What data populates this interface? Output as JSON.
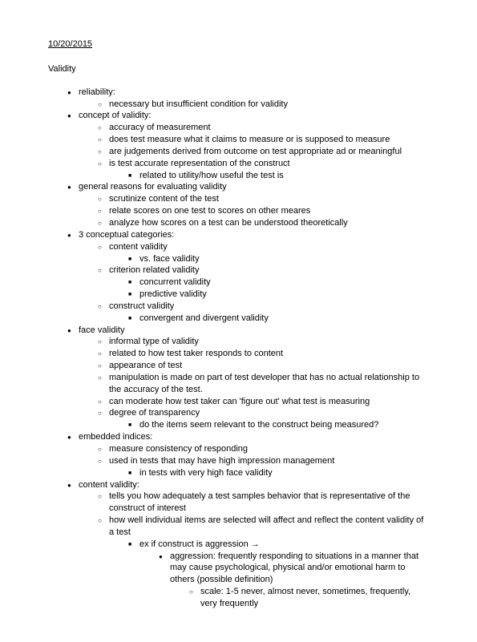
{
  "date": "10/20/2015",
  "title": "Validity",
  "b1": "reliability:",
  "b1_1": "necessary but insufficient condition for validity",
  "b2": "concept of validity:",
  "b2_1": "accuracy of measurement",
  "b2_2": "does test measure what it claims to measure or is supposed to measure",
  "b2_3": "are judgements derived from outcome on test appropriate ad or meaningful",
  "b2_4": "is test accurate representation of the construct",
  "b2_4_1": "related to utility/how useful the test is",
  "b3": "general reasons for evaluating validity",
  "b3_1": "scrutinize content of the test",
  "b3_2": "relate scores on one test to scores on other meares",
  "b3_3": "analyze how scores on a test can be understood theoretically",
  "b4": "3 conceptual categories:",
  "b4_1": "content validity",
  "b4_1_1": "vs. face validity",
  "b4_2": "criterion related validity",
  "b4_2_1": "concurrent validity",
  "b4_2_2": "predictive validity",
  "b4_3": "construct validity",
  "b4_3_1": "convergent and divergent validity",
  "b5": "face validity",
  "b5_1": "informal type of validity",
  "b5_2": "related to how test taker responds to content",
  "b5_3": "appearance of test",
  "b5_4": "manipulation is made on part of test developer that has no actual relationship to the accuracy of the test.",
  "b5_5": "can moderate how test taker can 'figure out' what test is measuring",
  "b5_6": "degree of transparency",
  "b5_6_1": "do the items seem relevant to the construct being measured?",
  "b6": "embedded indices:",
  "b6_1": "measure consistency of responding",
  "b6_2": "used in tests that may have high impression management",
  "b6_2_1": "in tests with very high face validity",
  "b7": "content validity:",
  "b7_1": "tells you how adequately a test samples behavior that is representative of the construct of interest",
  "b7_2": "how well individual items are selected will affect and reflect the content validity of a test",
  "b7_2_1": "ex if construct is aggression →",
  "b7_2_1_1": "aggression: frequently responding to situations in a manner that may cause psychological, physical and/or emotional harm to others (possible definition)",
  "b7_2_1_1_1": "scale: 1-5 never, almost never, sometimes, frequently, very frequently"
}
